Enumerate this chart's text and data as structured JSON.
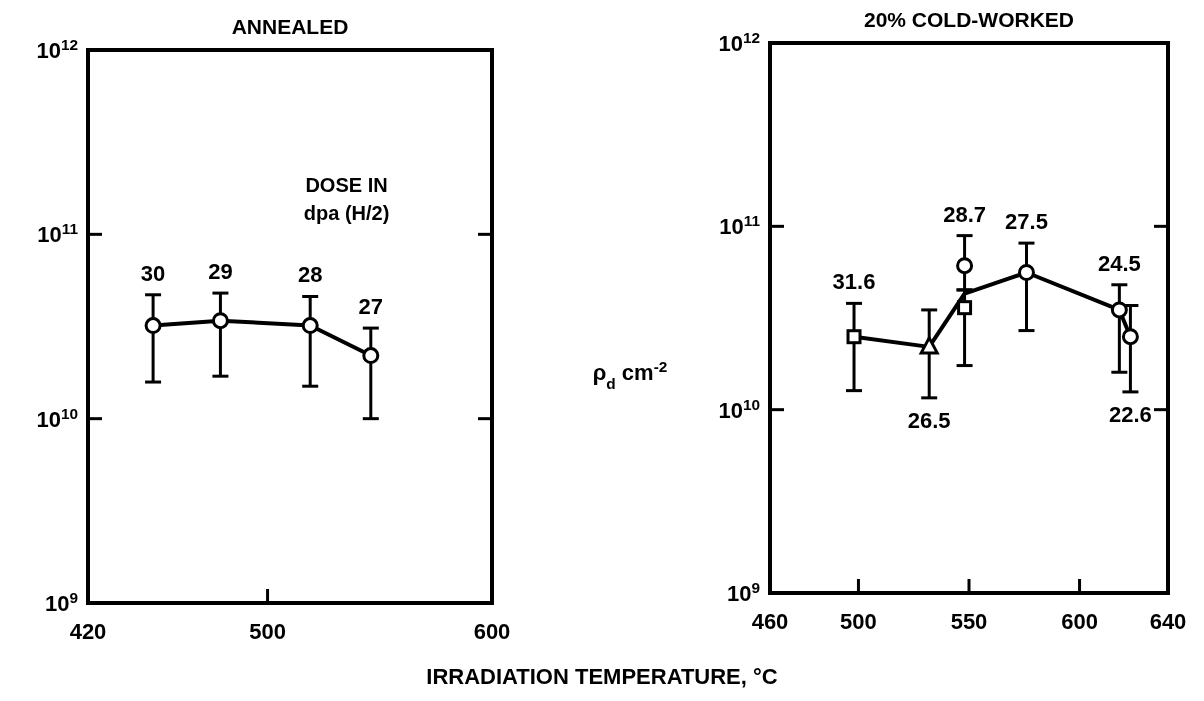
{
  "chart_data": [
    {
      "type": "line",
      "title": "ANNEALED",
      "log": "y",
      "xlim": [
        420,
        600
      ],
      "xticks": [
        420,
        500,
        600
      ],
      "ylim": [
        1000000000.0,
        1000000000000.0
      ],
      "yticks": [
        {
          "value": 1000000000.0,
          "label": "10$^{9}$"
        },
        {
          "value": 10000000000.0,
          "label": "10$^{10}$"
        },
        {
          "value": 100000000000.0,
          "label": "10$^{11}$"
        },
        {
          "value": 1000000000000.0,
          "label": "10$^{12}$"
        }
      ],
      "annotations": [
        "DOSE IN",
        "dpa (H/2)",
        {
          "text": "30",
          "x": 449,
          "y": 32000000000.0
        },
        {
          "text": "29",
          "x": 479,
          "y": 34000000000.0
        },
        {
          "text": "28",
          "x": 519,
          "y": 32000000000.0
        },
        {
          "text": "27",
          "x": 546,
          "y": 22000000000.0
        }
      ],
      "series": [
        {
          "color": "#000000",
          "marker": "circle",
          "x": [
            449,
            479,
            519,
            546
          ],
          "values": [
            32000000000.0,
            34000000000.0,
            32000000000.0,
            22000000000.0
          ],
          "errors": [
            [
              15800000000.0,
              47000000000.0
            ],
            [
              17000000000.0,
              48000000000.0
            ],
            [
              15000000000.0,
              46000000000.0
            ],
            [
              10000000000.0,
              31000000000.0
            ]
          ]
        }
      ]
    },
    {
      "type": "line",
      "title": "20% COLD-WORKED",
      "xlabel": "IRRADIATION TEMPERATURE, °C",
      "ylabel": "ρ$_{d}$ cm$^{-2}$",
      "log": "y",
      "xlim": [
        460,
        640
      ],
      "xticks": [
        460,
        500,
        550,
        600,
        640
      ],
      "ylim": [
        1000000000.0,
        1000000000000.0
      ],
      "yticks": [
        {
          "value": 1000000000.0,
          "label": "10$^{9}$"
        },
        {
          "value": 10000000000.0,
          "label": "10$^{10}$"
        },
        {
          "value": 100000000000.0,
          "label": "10$^{11}$"
        },
        {
          "value": 1000000000000.0,
          "label": "10$^{12}$"
        }
      ],
      "annotations": [
        {
          "text": "31.6",
          "x": 498,
          "y": 25000000000.0
        },
        {
          "text": "28.7",
          "x": 548,
          "y": 61000000000.0
        },
        {
          "text": "27.5",
          "x": 576,
          "y": 56000000000.0
        },
        {
          "text": "24.5",
          "x": 618,
          "y": 35000000000.0
        },
        {
          "text": "26.5",
          "x": 532,
          "y": 22000000000.0
        },
        {
          "text": "22.6",
          "x": 623,
          "y": 25000000000.0
        }
      ],
      "series": [
        {
          "color": "#000000",
          "marker": "none",
          "x": [
            498,
            532,
            548,
            576,
            618,
            623
          ],
          "values": [
            25000000000.0,
            22000000000.0,
            43000000000.0,
            56000000000.0,
            35000000000.0,
            25000000000.0
          ]
        },
        {
          "type": "scatter",
          "color": "#000000",
          "marker": "square",
          "x": [
            498,
            548
          ],
          "values": [
            25000000000.0,
            36000000000.0
          ],
          "errors": [
            [
              12700000000.0,
              38000000000.0
            ],
            [
              17400000000.0,
              45000000000.0
            ]
          ]
        },
        {
          "type": "scatter",
          "color": "#000000",
          "marker": "triangle",
          "x": [
            532
          ],
          "values": [
            22000000000.0
          ],
          "errors": [
            [
              11600000000.0,
              35000000000.0
            ]
          ]
        },
        {
          "type": "scatter",
          "color": "#000000",
          "marker": "circle",
          "x": [
            548,
            576,
            618,
            623
          ],
          "values": [
            61000000000.0,
            56000000000.0,
            35000000000.0,
            25000000000.0
          ],
          "errors": [
            [
              45000000000.0,
              89000000000.0
            ],
            [
              27000000000.0,
              81000000000.0
            ],
            [
              16000000000.0,
              48000000000.0
            ],
            [
              12500000000.0,
              37000000000.0
            ]
          ]
        }
      ]
    }
  ]
}
